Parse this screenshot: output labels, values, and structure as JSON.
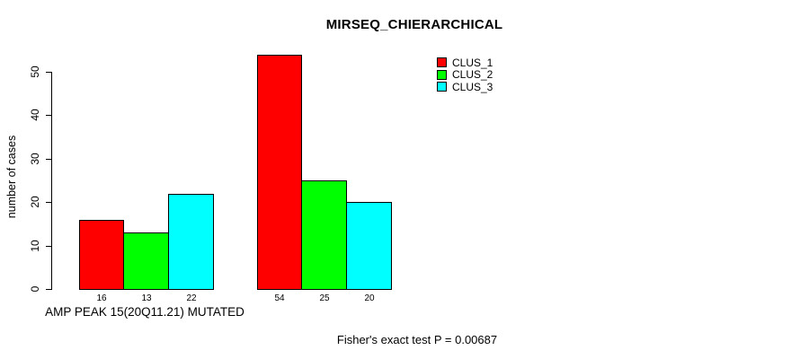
{
  "chart_data": {
    "type": "bar",
    "title": "MIRSEQ_CHIERARCHICAL",
    "ylabel": "number of cases",
    "xlabel": "",
    "group_label": "AMP PEAK 15(20Q11.21) MUTATED",
    "footnote": "Fisher's exact test P = 0.00687",
    "ylim": [
      0,
      50
    ],
    "yticks": [
      0,
      10,
      20,
      30,
      40,
      50
    ],
    "grid": false,
    "legend_position": "top-right",
    "categories": [
      "AMP PEAK 15(20Q11.21) MUTATED",
      ""
    ],
    "series": [
      {
        "name": "CLUS_1",
        "color": "#FF0000",
        "values": [
          16,
          54
        ]
      },
      {
        "name": "CLUS_2",
        "color": "#00FF00",
        "values": [
          13,
          25
        ]
      },
      {
        "name": "CLUS_3",
        "color": "#00FFFF",
        "values": [
          22,
          20
        ]
      }
    ],
    "bar_value_labels": [
      [
        16,
        13,
        22
      ],
      [
        54,
        25,
        20
      ]
    ],
    "background_color": "#FFFFFF",
    "axis_color": "#000000"
  }
}
